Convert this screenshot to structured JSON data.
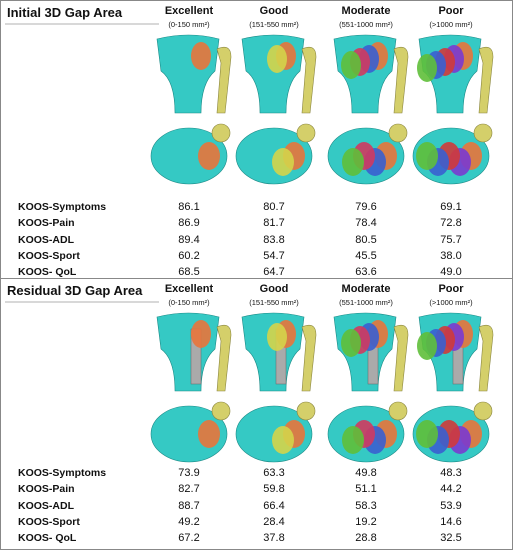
{
  "panels": [
    {
      "title": "Initial 3D Gap Area",
      "columns": [
        {
          "name": "Excellent",
          "range": "(0-150 mm²)"
        },
        {
          "name": "Good",
          "range": "(151-550 mm²)"
        },
        {
          "name": "Moderate",
          "range": "(551-1000 mm²)"
        },
        {
          "name": "Poor",
          "range": "(>1000 mm²)"
        }
      ],
      "rows": [
        {
          "label": "KOOS-Symptoms",
          "values": [
            "86.1",
            "80.7",
            "79.6",
            "69.1"
          ]
        },
        {
          "label": "KOOS-Pain",
          "values": [
            "86.9",
            "81.7",
            "78.4",
            "72.8"
          ]
        },
        {
          "label": "KOOS-ADL",
          "values": [
            "89.4",
            "83.8",
            "80.5",
            "75.7"
          ]
        },
        {
          "label": "KOOS-Sport",
          "values": [
            "60.2",
            "54.7",
            "45.5",
            "38.0"
          ]
        },
        {
          "label": "KOOS- QoL",
          "values": [
            "68.5",
            "64.7",
            "63.6",
            "49.0"
          ]
        }
      ]
    },
    {
      "title": "Residual 3D Gap Area",
      "columns": [
        {
          "name": "Excellent",
          "range": "(0-150 mm²)"
        },
        {
          "name": "Good",
          "range": "(151-550 mm²)"
        },
        {
          "name": "Moderate",
          "range": "(551-1000 mm²)"
        },
        {
          "name": "Poor",
          "range": "(>1000 mm²)"
        }
      ],
      "rows": [
        {
          "label": "KOOS-Symptoms",
          "values": [
            "73.9",
            "63.3",
            "49.8",
            "48.3"
          ]
        },
        {
          "label": "KOOS-Pain",
          "values": [
            "82.7",
            "59.8",
            "51.1",
            "44.2"
          ]
        },
        {
          "label": "KOOS-ADL",
          "values": [
            "88.7",
            "66.4",
            "58.3",
            "53.9"
          ]
        },
        {
          "label": "KOOS-Sport",
          "values": [
            "49.2",
            "28.4",
            "19.2",
            "14.6"
          ]
        },
        {
          "label": "KOOS- QoL",
          "values": [
            "67.2",
            "37.8",
            "28.8",
            "32.5"
          ]
        }
      ]
    }
  ]
}
